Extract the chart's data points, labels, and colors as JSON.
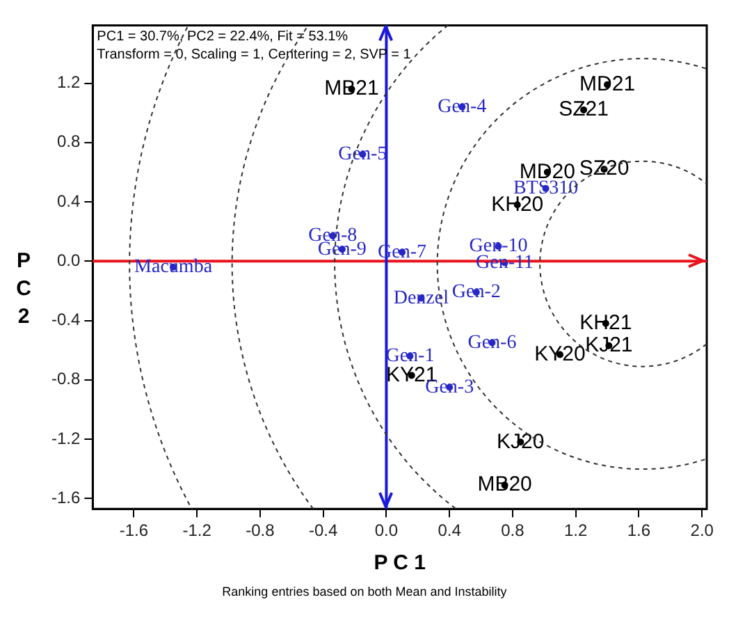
{
  "chart_data": {
    "type": "scatter",
    "xlabel": "P C 1",
    "ylabel": "PC2",
    "annotations": [
      "PC1 = 30.7%, PC2 = 22.4%, Fit = 53.1%",
      "Transform = 0, Scaling = 1, Centering = 2, SVP = 1",
      "Ranking entries based on both Mean and Instability"
    ],
    "xlim": [
      -1.86,
      2.03
    ],
    "ylim": [
      -1.67,
      1.59
    ],
    "xticks": [
      -1.6,
      -1.2,
      -0.8,
      -0.4,
      {
        "value": 0,
        "label": "0.0"
      },
      0.4,
      0.8,
      1.2,
      1.6,
      {
        "value": 2,
        "label": "2.0"
      }
    ],
    "yticks": [
      -1.6,
      -1.2,
      -0.8,
      -0.4,
      {
        "value": 0,
        "label": "0.0"
      },
      0.4,
      0.8,
      1.2
    ],
    "marker": "circle",
    "ref_lines": [
      {
        "axis": "y",
        "value": 0,
        "color": "#e8141e"
      },
      {
        "axis": "x",
        "value": 0,
        "color": "#1a1adc"
      }
    ],
    "series": [
      {
        "color": "#000000",
        "x": [
          -0.22,
          1.4,
          1.25,
          1.02,
          1.38,
          0.83,
          1.39,
          1.41,
          1.1,
          0.16,
          0.85,
          0.75
        ],
        "values": [
          1.16,
          1.19,
          1.02,
          0.6,
          0.62,
          0.38,
          -0.42,
          -0.57,
          -0.63,
          -0.77,
          -1.22,
          -1.51
        ],
        "value_labels": [
          "MB21",
          "MD21",
          "SZ21",
          "MD20",
          "SZ20",
          "KH20",
          "KH21",
          "KJ21",
          "KY20",
          "KY21",
          "KJ20",
          "MB20"
        ]
      },
      {
        "color": "#2828c8",
        "x": [
          0.48,
          -0.15,
          1.01,
          -0.34,
          -0.28,
          0.1,
          0.71,
          0.75,
          -1.35,
          0.57,
          0.22,
          0.67,
          0.15,
          0.4
        ],
        "values": [
          1.04,
          0.72,
          0.49,
          0.17,
          0.08,
          0.06,
          0.1,
          -0.01,
          -0.04,
          -0.21,
          -0.25,
          -0.55,
          -0.64,
          -0.85
        ],
        "value_labels": [
          "Gen-4",
          "Gen-5",
          "BTS310",
          "Gen-8",
          "Gen-9",
          "Gen-7",
          "Gen-10",
          "Gen-11",
          "Macumba",
          "Gen-2",
          "Denzel",
          "Gen-6",
          "Gen-1",
          "Gen-3"
        ]
      }
    ]
  }
}
